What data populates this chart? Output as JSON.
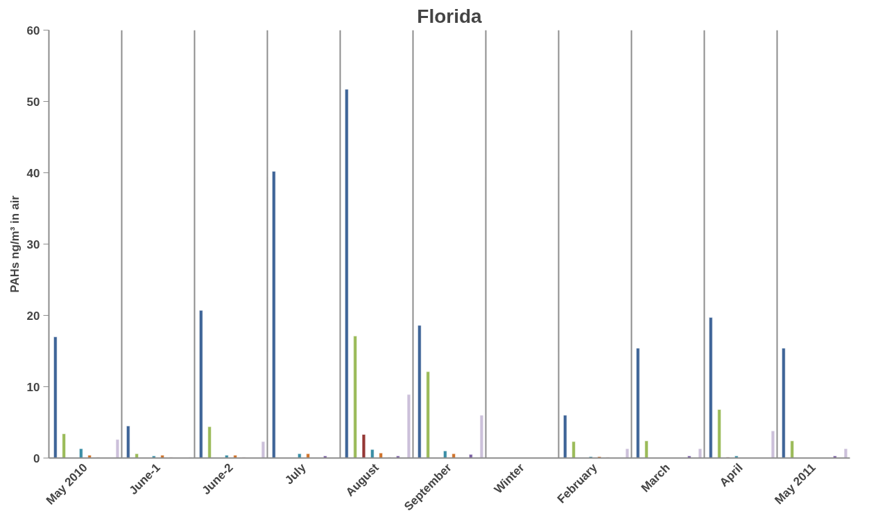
{
  "chart_data": {
    "type": "bar",
    "title": "Florida",
    "ylabel": "PAHs ng/m³ in air",
    "categories": [
      "May 2010",
      "June-1",
      "June-2",
      "July",
      "August",
      "September",
      "Winter",
      "February",
      "March",
      "April",
      "May 2011"
    ],
    "series": [
      {
        "color": "#3f6598",
        "values": [
          17.0,
          4.5,
          20.7,
          40.2,
          51.7,
          18.6,
          null,
          6.0,
          15.4,
          19.7,
          15.4
        ]
      },
      {
        "color": "#9bbb59",
        "values": [
          3.4,
          0.6,
          4.4,
          null,
          17.1,
          12.1,
          null,
          2.3,
          2.4,
          6.8,
          2.4
        ]
      },
      {
        "color": "#953735",
        "values": [
          null,
          null,
          null,
          null,
          3.3,
          null,
          null,
          null,
          null,
          0.1,
          null
        ]
      },
      {
        "color": "#3a8ea6",
        "values": [
          1.3,
          0.3,
          0.4,
          0.6,
          1.2,
          1.0,
          null,
          0.2,
          null,
          0.3,
          null
        ]
      },
      {
        "color": "#d0732b",
        "values": [
          0.4,
          0.4,
          0.4,
          0.6,
          0.7,
          0.6,
          null,
          0.2,
          null,
          null,
          null
        ]
      },
      {
        "color": "#d9a9a9",
        "values": [
          0.1,
          0.1,
          0.1,
          null,
          0.1,
          null,
          null,
          0.1,
          null,
          null,
          null
        ]
      },
      {
        "color": "#7a5fa3",
        "values": [
          null,
          null,
          null,
          0.3,
          0.3,
          0.5,
          null,
          null,
          0.3,
          null,
          0.3
        ]
      },
      {
        "color": "#ccc0da",
        "values": [
          2.6,
          0.1,
          2.3,
          null,
          8.9,
          6.0,
          null,
          1.3,
          1.3,
          3.8,
          1.3
        ]
      }
    ],
    "ylim": [
      0,
      60
    ],
    "yticks": [
      0,
      10,
      20,
      30,
      40,
      50,
      60
    ],
    "grid": "x"
  }
}
